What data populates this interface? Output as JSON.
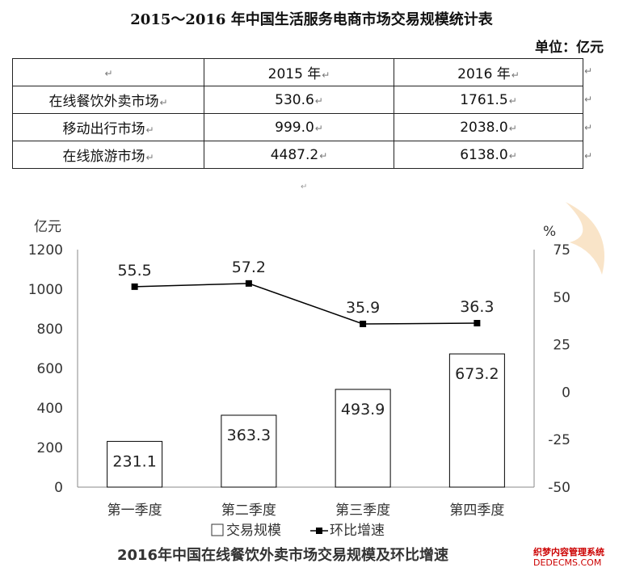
{
  "table": {
    "title": "2015～2016 年中国生活服务电商市场交易规模统计表",
    "unit": "单位：亿元",
    "header": [
      "",
      "2015 年",
      "2016 年"
    ],
    "rows": [
      [
        "在线餐饮外卖市场",
        "530.6",
        "1761.5"
      ],
      [
        "移动出行市场",
        "999.0",
        "2038.0"
      ],
      [
        "在线旅游市场",
        "4487.2",
        "6138.0"
      ]
    ]
  },
  "chart_data": {
    "type": "bar",
    "title": "2016年中国在线餐饮外卖市场交易规模及环比增速",
    "categories": [
      "第一季度",
      "第二季度",
      "第三季度",
      "第四季度"
    ],
    "series": [
      {
        "name": "交易规模",
        "type": "bar",
        "axis": "left",
        "values": [
          231.1,
          363.3,
          493.9,
          673.2
        ]
      },
      {
        "name": "环比增速",
        "type": "line",
        "axis": "right",
        "values": [
          55.5,
          57.2,
          35.9,
          36.3
        ]
      }
    ],
    "ylabel": "亿元",
    "y2label": "%",
    "ylim": [
      0,
      1200
    ],
    "y2lim": [
      -50,
      75
    ],
    "yticks": [
      "0",
      "200",
      "400",
      "600",
      "800",
      "1000",
      "1200"
    ],
    "y2ticks": [
      "-50",
      "-25",
      "0",
      "25",
      "50",
      "75"
    ],
    "legend_position": "bottom",
    "grid": false
  },
  "watermark": {
    "line1": "织梦内容管理系统",
    "line2": "DEDECMS.COM"
  },
  "colors": {
    "line": "#000000",
    "bar_fill": "#ffffff",
    "bar_stroke": "#000000",
    "axis": "#888888"
  }
}
